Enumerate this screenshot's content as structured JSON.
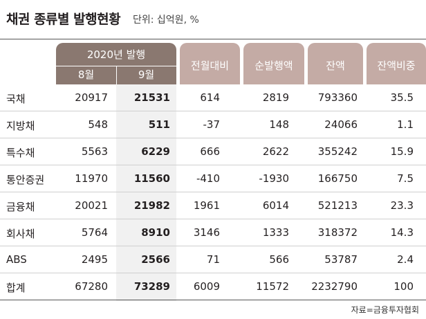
{
  "title": "채권 종류별 발행현황",
  "unit": "단위: 십억원, %",
  "header": {
    "group": "2020년 발행",
    "sub": [
      "8월",
      "9월"
    ],
    "cols": [
      "전월대비",
      "순발행액",
      "잔액",
      "잔액비중"
    ]
  },
  "rows": [
    {
      "name": "국채",
      "aug": "20917",
      "sep": "21531",
      "mom": "614",
      "net": "2819",
      "bal": "793360",
      "share": "35.5"
    },
    {
      "name": "지방채",
      "aug": "548",
      "sep": "511",
      "mom": "-37",
      "net": "148",
      "bal": "24066",
      "share": "1.1"
    },
    {
      "name": "특수채",
      "aug": "5563",
      "sep": "6229",
      "mom": "666",
      "net": "2622",
      "bal": "355242",
      "share": "15.9"
    },
    {
      "name": "통안증권",
      "aug": "11970",
      "sep": "11560",
      "mom": "-410",
      "net": "-1930",
      "bal": "166750",
      "share": "7.5"
    },
    {
      "name": "금융채",
      "aug": "20021",
      "sep": "21982",
      "mom": "1961",
      "net": "6014",
      "bal": "521213",
      "share": "23.3"
    },
    {
      "name": "회사채",
      "aug": "5764",
      "sep": "8910",
      "mom": "3146",
      "net": "1333",
      "bal": "318372",
      "share": "14.3"
    },
    {
      "name": "ABS",
      "aug": "2495",
      "sep": "2566",
      "mom": "71",
      "net": "566",
      "bal": "53787",
      "share": "2.4"
    },
    {
      "name": "합계",
      "aug": "67280",
      "sep": "73289",
      "mom": "6009",
      "net": "11572",
      "bal": "2232790",
      "share": "100"
    }
  ],
  "source": "자료=금융투자협회",
  "colors": {
    "header_dark": "#8a7870",
    "header_light": "#c4aba5",
    "sep_col_bg": "#f1f1f1"
  }
}
